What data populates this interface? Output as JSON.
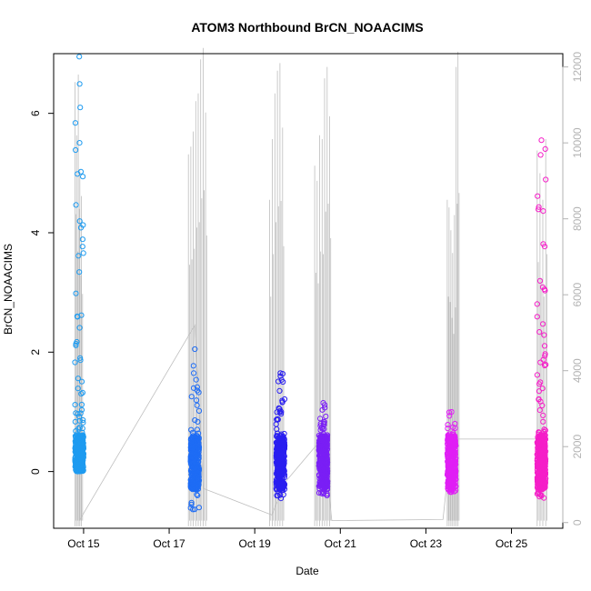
{
  "chart_data": {
    "type": "scatter",
    "title": "ATOM3 Northbound BrCN_NOAACIMS",
    "xlabel": "Date",
    "ylabel": "BrCN_NOAACIMS",
    "x_ticks": [
      "Oct 15",
      "Oct 17",
      "Oct 19",
      "Oct 21",
      "Oct 23",
      "Oct 25"
    ],
    "x_tick_days": [
      15,
      17,
      19,
      21,
      23,
      25
    ],
    "xlim": [
      14.3,
      26.2
    ],
    "ylim": [
      -0.95,
      7.0
    ],
    "y_ticks": [
      0,
      2,
      4,
      6
    ],
    "y2lim": [
      -150,
      12350
    ],
    "y2_ticks": [
      0,
      2000,
      4000,
      6000,
      8000,
      10000,
      12000
    ],
    "y2_line_color": "#bebebe",
    "y2_description": "altitude trace (right axis, unlabeled)",
    "series": [
      {
        "flight_day": 14.9,
        "x_range": [
          14.75,
          14.95
        ],
        "y_typical": [
          0.0,
          0.6
        ],
        "y_max": 6.95,
        "color": "#1e9bf0",
        "high_density": 0.9
      },
      {
        "flight_day": 17.6,
        "x_range": [
          17.4,
          17.85
        ],
        "y_typical": [
          -0.3,
          0.6
        ],
        "y_max": 2.05,
        "y_min": -0.75,
        "color": "#1e6cf5",
        "high_density": 0.3
      },
      {
        "flight_day": 19.6,
        "x_range": [
          19.3,
          19.65
        ],
        "y_typical": [
          -0.3,
          0.6
        ],
        "y_max": 1.65,
        "y_min": -0.45,
        "color": "#2a1ff0",
        "high_density": 0.45
      },
      {
        "flight_day": 20.6,
        "x_range": [
          20.4,
          20.8
        ],
        "y_typical": [
          -0.3,
          0.6
        ],
        "y_max": 1.15,
        "y_min": -0.4,
        "color": "#7a1ff5",
        "high_density": 0.35
      },
      {
        "flight_day": 23.6,
        "x_range": [
          23.4,
          23.75
        ],
        "y_typical": [
          -0.3,
          0.6
        ],
        "y_max": 1.0,
        "y_min": -0.35,
        "color": "#e01ef5",
        "high_density": 0.2
      },
      {
        "flight_day": 25.7,
        "x_range": [
          25.55,
          25.85
        ],
        "y_typical": [
          -0.3,
          0.6
        ],
        "y_max": 5.55,
        "y_min": -0.45,
        "color": "#f51ec8",
        "high_density": 0.85
      }
    ],
    "altitude_path": [
      [
        14.9,
        50
      ],
      [
        17.6,
        5200
      ],
      [
        17.8,
        900
      ],
      [
        19.4,
        200
      ],
      [
        19.7,
        1050
      ],
      [
        20.6,
        2250
      ],
      [
        20.8,
        50
      ],
      [
        23.4,
        80
      ],
      [
        23.6,
        2200
      ],
      [
        25.6,
        2200
      ]
    ],
    "altitude_spikes": [
      {
        "x_range": [
          14.8,
          14.95
        ],
        "peaks": [
          11600,
          10200,
          11800,
          9300,
          8600
        ]
      },
      {
        "x_range": [
          17.45,
          17.85
        ],
        "peaks": [
          9700,
          9900,
          10300,
          11100,
          11300,
          12200,
          12500,
          10800
        ]
      },
      {
        "x_range": [
          19.35,
          19.65
        ],
        "peaks": [
          8500,
          10100,
          11300,
          11900,
          12100,
          10400
        ]
      },
      {
        "x_range": [
          20.4,
          20.75
        ],
        "peaks": [
          9400,
          9000,
          10200,
          10100,
          11700,
          12000,
          10700
        ]
      },
      {
        "x_range": [
          23.5,
          23.75
        ],
        "peaks": [
          8500,
          8300,
          7700,
          7100,
          8100,
          12000,
          12400
        ]
      },
      {
        "x_range": [
          25.6,
          25.8
        ],
        "peaks": [
          9800,
          9200,
          8500,
          10100
        ]
      }
    ]
  }
}
